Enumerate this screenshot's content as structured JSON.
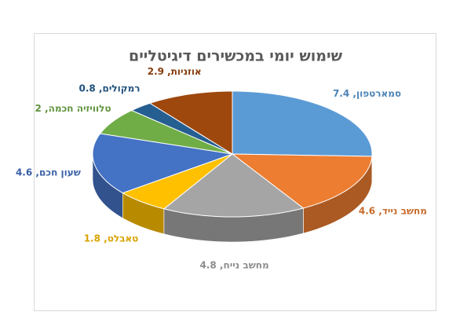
{
  "chart_data": {
    "type": "pie3d",
    "title": "שימוש יומי במכשירים דיגיטליים",
    "values": [
      7.4,
      4.6,
      4.8,
      1.8,
      4.6,
      2,
      0.8,
      2.9
    ],
    "value_labels": [
      "סמארטפון, 7.4",
      "מחשב נייד, 4.6",
      "מחשב נייח, 4.8",
      "טאבלט, 1.8",
      "שעון חכם, 4.6",
      "טלוויזיה חכמה, 2",
      "רמקולים, 0.8",
      "אוזניות, 2.9"
    ],
    "colors": [
      "#5b9bd5",
      "#ed7d31",
      "#a5a5a5",
      "#ffc000",
      "#4472c4",
      "#70ad47",
      "#255e91",
      "#9e480e"
    ]
  }
}
